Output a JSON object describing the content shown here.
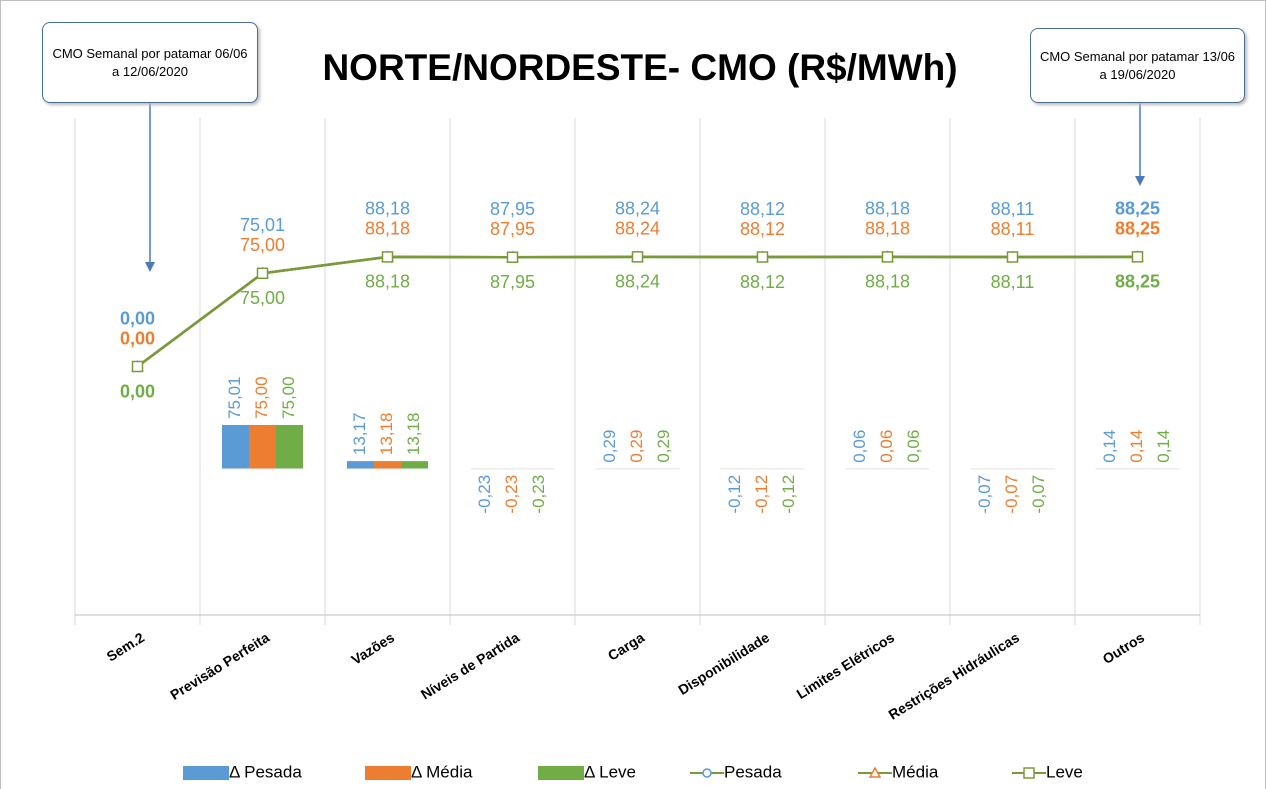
{
  "chart_data": {
    "type": "bar_line",
    "title": "NORTE/NORDESTE- CMO (R$/MWh)",
    "annotations": [
      "CMO Semanal por patamar 06/06 a 12/06/2020",
      "CMO Semanal por patamar 13/06 a 19/06/2020"
    ],
    "categories": [
      "Sem.2",
      "Previsão Perfeita",
      "Vazões",
      "Níveis de Partida",
      "Carga",
      "Disponibilidade",
      "Limites Elétricos",
      "Restrições Hidráulicas",
      "Outros"
    ],
    "ylim": [
      -200,
      200
    ],
    "y2lim": [
      -250,
      600
    ],
    "bold_labels": [
      0,
      8
    ],
    "series": [
      {
        "name": "Δ Pesada",
        "kind": "bar",
        "axis": "y2",
        "color": "#5b9bd5",
        "values": [
          null,
          75.01,
          13.17,
          -0.23,
          0.29,
          -0.12,
          0.06,
          -0.07,
          0.14
        ],
        "value_labels": [
          null,
          "75,01",
          "13,17",
          "-0,23",
          "0,29",
          "-0,12",
          "0,06",
          "-0,07",
          "0,14"
        ]
      },
      {
        "name": "Δ Média",
        "kind": "bar",
        "axis": "y2",
        "color": "#ed7d31",
        "values": [
          null,
          75.0,
          13.18,
          -0.23,
          0.29,
          -0.12,
          0.06,
          -0.07,
          0.14
        ],
        "value_labels": [
          null,
          "75,00",
          "13,18",
          "-0,23",
          "0,29",
          "-0,12",
          "0,06",
          "-0,07",
          "0,14"
        ]
      },
      {
        "name": "Δ Leve",
        "kind": "bar",
        "axis": "y2",
        "color": "#70ad47",
        "values": [
          null,
          75.0,
          13.18,
          -0.23,
          0.29,
          -0.12,
          0.06,
          -0.07,
          0.14
        ],
        "value_labels": [
          null,
          "75,00",
          "13,18",
          "-0,23",
          "0,29",
          "-0,12",
          "0,06",
          "-0,07",
          "0,14"
        ]
      },
      {
        "name": "Pesada",
        "kind": "line",
        "marker": "circle",
        "color": "#5b9bd5",
        "line_color": "#7a9a3a",
        "values": [
          0,
          75.01,
          88.18,
          87.95,
          88.24,
          88.12,
          88.18,
          88.11,
          88.25
        ],
        "value_labels": [
          "0,00",
          "75,01",
          "88,18",
          "87,95",
          "88,24",
          "88,12",
          "88,18",
          "88,11",
          "88,25"
        ]
      },
      {
        "name": "Média",
        "kind": "line",
        "marker": "triangle",
        "color": "#ed7d31",
        "line_color": "#7a9a3a",
        "values": [
          0,
          75.0,
          88.18,
          87.95,
          88.24,
          88.12,
          88.18,
          88.11,
          88.25
        ],
        "value_labels": [
          "0,00",
          "75,00",
          "88,18",
          "87,95",
          "88,24",
          "88,12",
          "88,18",
          "88,11",
          "88,25"
        ]
      },
      {
        "name": "Leve",
        "kind": "line",
        "marker": "square",
        "color": "#70ad47",
        "line_color": "#7a9a3a",
        "values": [
          0,
          75.0,
          88.18,
          87.95,
          88.24,
          88.12,
          88.18,
          88.11,
          88.25
        ],
        "value_labels": [
          "0,00",
          "75,00",
          "88,18",
          "87,95",
          "88,24",
          "88,12",
          "88,18",
          "88,11",
          "88,25"
        ]
      }
    ]
  }
}
